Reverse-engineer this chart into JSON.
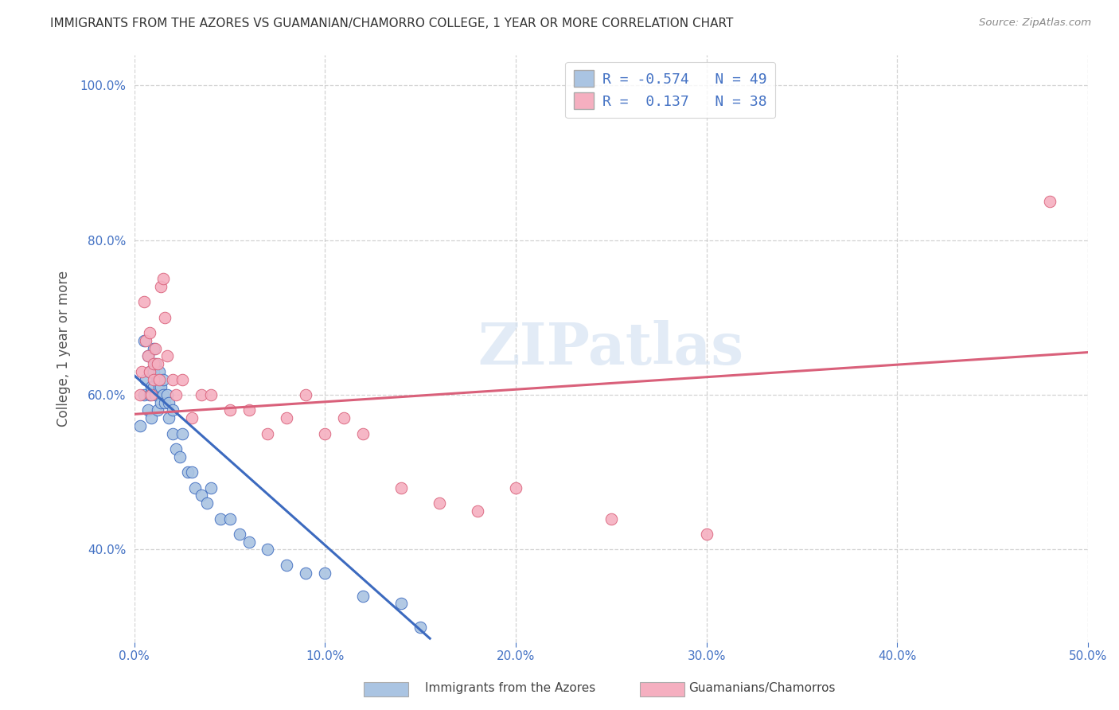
{
  "title": "IMMIGRANTS FROM THE AZORES VS GUAMANIAN/CHAMORRO COLLEGE, 1 YEAR OR MORE CORRELATION CHART",
  "source": "Source: ZipAtlas.com",
  "ylabel": "College, 1 year or more",
  "xlim": [
    0.0,
    0.5
  ],
  "ylim": [
    0.28,
    1.04
  ],
  "xticks": [
    0.0,
    0.1,
    0.2,
    0.3,
    0.4,
    0.5
  ],
  "xtick_labels": [
    "0.0%",
    "10.0%",
    "20.0%",
    "30.0%",
    "40.0%",
    "50.0%"
  ],
  "yticks": [
    0.4,
    0.6,
    0.8,
    1.0
  ],
  "ytick_labels": [
    "40.0%",
    "60.0%",
    "80.0%",
    "100.0%"
  ],
  "legend1_label": "Immigrants from the Azores",
  "legend2_label": "Guamanians/Chamorros",
  "r1": -0.574,
  "n1": 49,
  "r2": 0.137,
  "n2": 38,
  "color1": "#aac4e2",
  "color2": "#f5afc0",
  "line_color1": "#3c6abf",
  "line_color2": "#d9607a",
  "background_color": "#ffffff",
  "scatter1_x": [
    0.003,
    0.005,
    0.005,
    0.006,
    0.007,
    0.007,
    0.008,
    0.008,
    0.009,
    0.009,
    0.01,
    0.01,
    0.01,
    0.011,
    0.011,
    0.012,
    0.012,
    0.013,
    0.013,
    0.014,
    0.014,
    0.015,
    0.015,
    0.016,
    0.017,
    0.018,
    0.018,
    0.02,
    0.02,
    0.022,
    0.024,
    0.025,
    0.028,
    0.03,
    0.032,
    0.035,
    0.038,
    0.04,
    0.045,
    0.05,
    0.055,
    0.06,
    0.07,
    0.08,
    0.09,
    0.1,
    0.12,
    0.14,
    0.15
  ],
  "scatter1_y": [
    0.56,
    0.6,
    0.67,
    0.62,
    0.58,
    0.65,
    0.6,
    0.63,
    0.57,
    0.61,
    0.61,
    0.63,
    0.66,
    0.6,
    0.64,
    0.58,
    0.62,
    0.61,
    0.63,
    0.59,
    0.61,
    0.6,
    0.62,
    0.59,
    0.6,
    0.57,
    0.59,
    0.55,
    0.58,
    0.53,
    0.52,
    0.55,
    0.5,
    0.5,
    0.48,
    0.47,
    0.46,
    0.48,
    0.44,
    0.44,
    0.42,
    0.41,
    0.4,
    0.38,
    0.37,
    0.37,
    0.34,
    0.33,
    0.3
  ],
  "scatter2_x": [
    0.003,
    0.004,
    0.005,
    0.006,
    0.007,
    0.008,
    0.008,
    0.009,
    0.01,
    0.01,
    0.011,
    0.012,
    0.013,
    0.014,
    0.015,
    0.016,
    0.017,
    0.02,
    0.022,
    0.025,
    0.03,
    0.035,
    0.04,
    0.05,
    0.06,
    0.07,
    0.08,
    0.09,
    0.1,
    0.11,
    0.12,
    0.14,
    0.16,
    0.18,
    0.2,
    0.25,
    0.3,
    0.48
  ],
  "scatter2_y": [
    0.6,
    0.63,
    0.72,
    0.67,
    0.65,
    0.63,
    0.68,
    0.6,
    0.64,
    0.62,
    0.66,
    0.64,
    0.62,
    0.74,
    0.75,
    0.7,
    0.65,
    0.62,
    0.6,
    0.62,
    0.57,
    0.6,
    0.6,
    0.58,
    0.58,
    0.55,
    0.57,
    0.6,
    0.55,
    0.57,
    0.55,
    0.48,
    0.46,
    0.45,
    0.48,
    0.44,
    0.42,
    0.85
  ],
  "line1_x0": 0.0,
  "line1_x1": 0.155,
  "line1_y0": 0.625,
  "line1_y1": 0.285,
  "line2_x0": 0.0,
  "line2_x1": 0.5,
  "line2_y0": 0.575,
  "line2_y1": 0.655
}
